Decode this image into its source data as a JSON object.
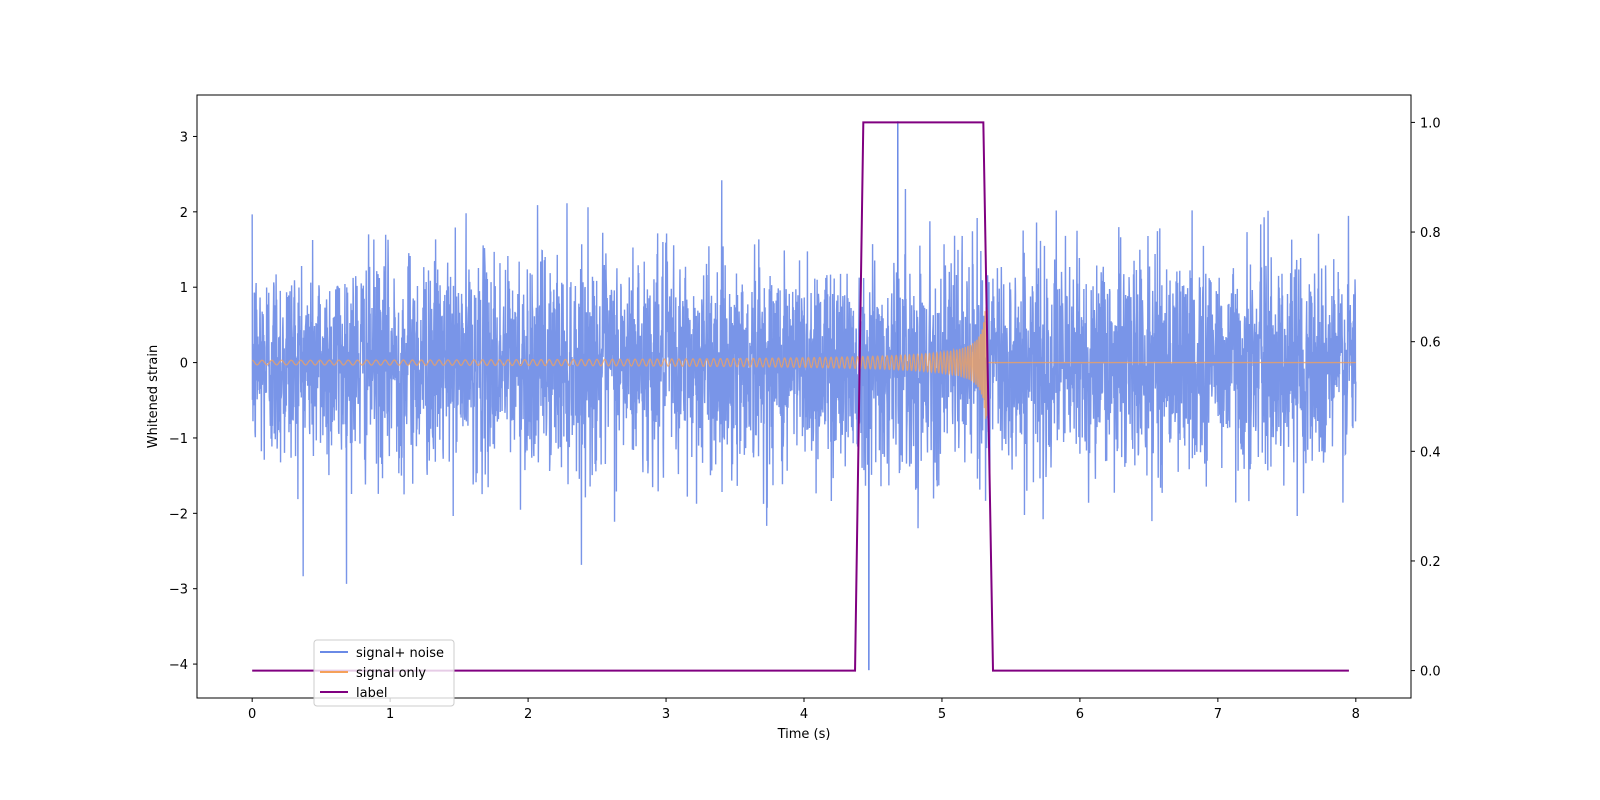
{
  "chart_data": {
    "type": "line",
    "xlabel": "Time (s)",
    "ylabel": "Whitened strain",
    "xlim": [
      -0.4,
      8.4
    ],
    "ylim": [
      -4.45,
      3.55
    ],
    "y2lim": [
      -0.05,
      1.05
    ],
    "x_ticks": [
      0,
      1,
      2,
      3,
      4,
      5,
      6,
      7,
      8
    ],
    "y_ticks": [
      -4,
      -3,
      -2,
      -1,
      0,
      1,
      2,
      3
    ],
    "y2_ticks": [
      0.0,
      0.2,
      0.4,
      0.6,
      0.8,
      1.0
    ],
    "x_tick_labels": [
      "0",
      "1",
      "2",
      "3",
      "4",
      "5",
      "6",
      "7",
      "8"
    ],
    "y_tick_labels": [
      "−4",
      "−3",
      "−2",
      "−1",
      "0",
      "1",
      "2",
      "3"
    ],
    "y2_tick_labels": [
      "0.0",
      "0.2",
      "0.4",
      "0.6",
      "0.8",
      "1.0"
    ],
    "legend_position": "lower-left",
    "series": [
      {
        "name": "signal+ noise",
        "axis": "left",
        "color": "#6a8ae6",
        "description_range": [
          -4.1,
          3.25
        ],
        "x_range": [
          0,
          8
        ],
        "approx_std": 0.9
      },
      {
        "name": "signal only",
        "axis": "left",
        "color": "#f5a15a",
        "x_range": [
          0,
          8
        ],
        "chirp": {
          "start": 0,
          "merger": 5.33,
          "amp_start": 0.03,
          "amp_peak": 0.75,
          "end_value": 0
        }
      },
      {
        "name": "label",
        "axis": "right",
        "color": "#800080",
        "points": [
          [
            0,
            0
          ],
          [
            4.37,
            0
          ],
          [
            4.43,
            1
          ],
          [
            5.3,
            1
          ],
          [
            5.37,
            0
          ],
          [
            7.95,
            0
          ]
        ]
      }
    ],
    "max_annotation": {
      "x": 4.68,
      "y": 3.2
    },
    "min_annotation": {
      "x": 4.47,
      "y": -4.08
    }
  }
}
